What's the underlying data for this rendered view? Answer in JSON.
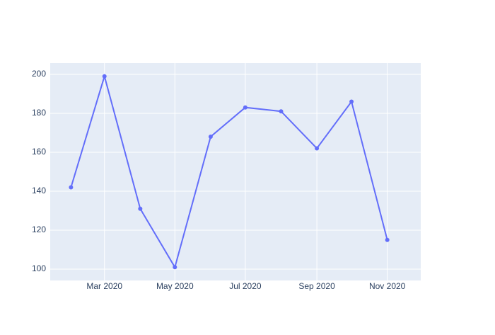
{
  "chart_data": {
    "type": "line",
    "x": [
      "2020-02",
      "2020-03",
      "2020-04",
      "2020-05",
      "2020-06",
      "2020-07",
      "2020-08",
      "2020-09",
      "2020-10",
      "2020-11"
    ],
    "series": [
      {
        "color": "#636efa",
        "values": [
          142,
          199,
          131,
          101,
          168,
          183,
          181,
          162,
          186,
          115
        ]
      }
    ],
    "xlim": [
      "2020-01-14",
      "2020-11-30"
    ],
    "xticks": [
      {
        "value": "2020-03",
        "label": "Mar 2020"
      },
      {
        "value": "2020-05",
        "label": "May 2020"
      },
      {
        "value": "2020-07",
        "label": "Jul 2020"
      },
      {
        "value": "2020-09",
        "label": "Sep 2020"
      },
      {
        "value": "2020-11",
        "label": "Nov 2020"
      }
    ],
    "ylim": [
      94.2,
      205.8
    ],
    "yticks": [
      100,
      120,
      140,
      160,
      180,
      200
    ],
    "grid": true,
    "background": "#e5ecf6"
  }
}
